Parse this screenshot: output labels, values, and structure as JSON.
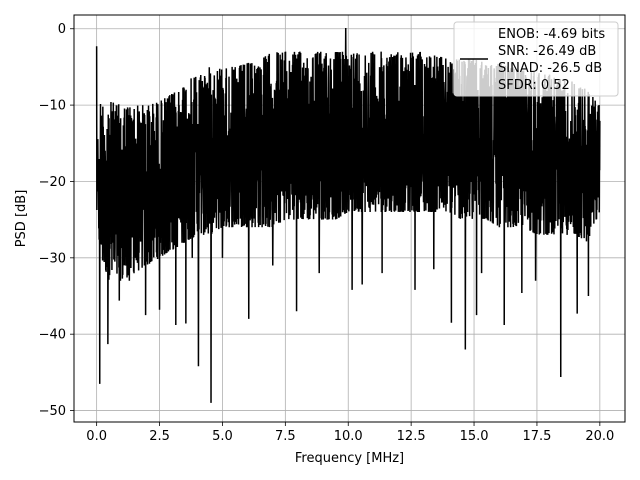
{
  "chart_data": {
    "type": "line",
    "title": "",
    "xlabel": "Frequency [MHz]",
    "ylabel": "PSD [dB]",
    "xlim": [
      -0.9,
      21.0
    ],
    "ylim": [
      -51.5,
      1.8
    ],
    "xticks": [
      0.0,
      2.5,
      5.0,
      7.5,
      10.0,
      12.5,
      15.0,
      17.5,
      20.0
    ],
    "xtick_labels": [
      "0.0",
      "2.5",
      "5.0",
      "7.5",
      "10.0",
      "12.5",
      "15.0",
      "17.5",
      "20.0"
    ],
    "yticks": [
      0,
      -10,
      -20,
      -30,
      -40,
      -50
    ],
    "ytick_labels": [
      "0",
      "−10",
      "−20",
      "−30",
      "−40",
      "−50"
    ],
    "grid": true,
    "legend_position": "top-right",
    "line_color": "#000000",
    "legend": {
      "line1": "ENOB: -4.69 bits",
      "line2": "SNR: -26.49 dB",
      "line3": "SINAD: -26.5 dB",
      "line4": "SFDR: 0.52"
    },
    "series": [
      {
        "envelope": {
          "x": [
            0.0,
            0.15,
            0.5,
            1.0,
            1.5,
            2.0,
            2.5,
            3.0,
            3.5,
            4.0,
            4.5,
            5.0,
            5.5,
            6.0,
            6.5,
            7.0,
            7.5,
            8.0,
            8.5,
            9.0,
            9.5,
            10.0,
            10.5,
            11.0,
            11.5,
            12.0,
            12.5,
            13.0,
            13.5,
            14.0,
            14.5,
            15.0,
            15.5,
            16.0,
            16.5,
            17.0,
            17.5,
            18.0,
            18.5,
            19.0,
            19.5,
            20.0
          ],
          "upper": [
            -16,
            -9.5,
            -9.5,
            -10,
            -10,
            -10,
            -9.5,
            -8.5,
            -7,
            -6,
            -5,
            -5,
            -5,
            -4.5,
            -4,
            -3,
            -3,
            -3,
            -3,
            -3,
            -3,
            -3,
            -3,
            -3,
            -3,
            -3,
            -3,
            -3,
            -3.5,
            -4,
            -4,
            -4,
            -4.5,
            -4.5,
            -5,
            -5.5,
            -5.5,
            -6,
            -6.5,
            -7,
            -8,
            -10
          ],
          "lower": [
            -24,
            -30,
            -33,
            -33,
            -32,
            -31,
            -30,
            -29,
            -28,
            -27,
            -27,
            -26,
            -26,
            -26,
            -26,
            -26,
            -25,
            -25,
            -25,
            -25,
            -25,
            -24,
            -24,
            -24,
            -24,
            -24,
            -24,
            -24,
            -24,
            -24,
            -25,
            -25,
            -25,
            -26,
            -26,
            -26,
            -27,
            -27,
            -27,
            -27,
            -28,
            -24
          ]
        },
        "spikes": [
          {
            "x": 0.0,
            "y": -2.3
          },
          {
            "x": 0.12,
            "y": -46.5
          },
          {
            "x": 0.45,
            "y": -41.3
          },
          {
            "x": 0.9,
            "y": -35.6
          },
          {
            "x": 1.3,
            "y": -33.0
          },
          {
            "x": 1.95,
            "y": -37.5
          },
          {
            "x": 2.5,
            "y": -36.8
          },
          {
            "x": 3.15,
            "y": -38.8
          },
          {
            "x": 3.55,
            "y": -38.6
          },
          {
            "x": 3.8,
            "y": -30.0
          },
          {
            "x": 4.05,
            "y": -44.2
          },
          {
            "x": 4.55,
            "y": -49.0
          },
          {
            "x": 5.0,
            "y": -30.0
          },
          {
            "x": 6.05,
            "y": -38.0
          },
          {
            "x": 7.0,
            "y": -31.0
          },
          {
            "x": 7.95,
            "y": -37.0
          },
          {
            "x": 8.85,
            "y": -32.0
          },
          {
            "x": 9.9,
            "y": 0.1
          },
          {
            "x": 10.15,
            "y": -34.2
          },
          {
            "x": 10.55,
            "y": -33.5
          },
          {
            "x": 11.35,
            "y": -32.0
          },
          {
            "x": 12.65,
            "y": -34.2
          },
          {
            "x": 13.4,
            "y": -31.5
          },
          {
            "x": 14.1,
            "y": -38.5
          },
          {
            "x": 14.65,
            "y": -42.0
          },
          {
            "x": 15.1,
            "y": -37.5
          },
          {
            "x": 15.3,
            "y": -32.0
          },
          {
            "x": 16.2,
            "y": -38.8
          },
          {
            "x": 16.9,
            "y": -34.6
          },
          {
            "x": 17.45,
            "y": -33.0
          },
          {
            "x": 18.45,
            "y": -45.6
          },
          {
            "x": 19.1,
            "y": -37.3
          },
          {
            "x": 19.55,
            "y": -35.0
          }
        ]
      }
    ]
  }
}
